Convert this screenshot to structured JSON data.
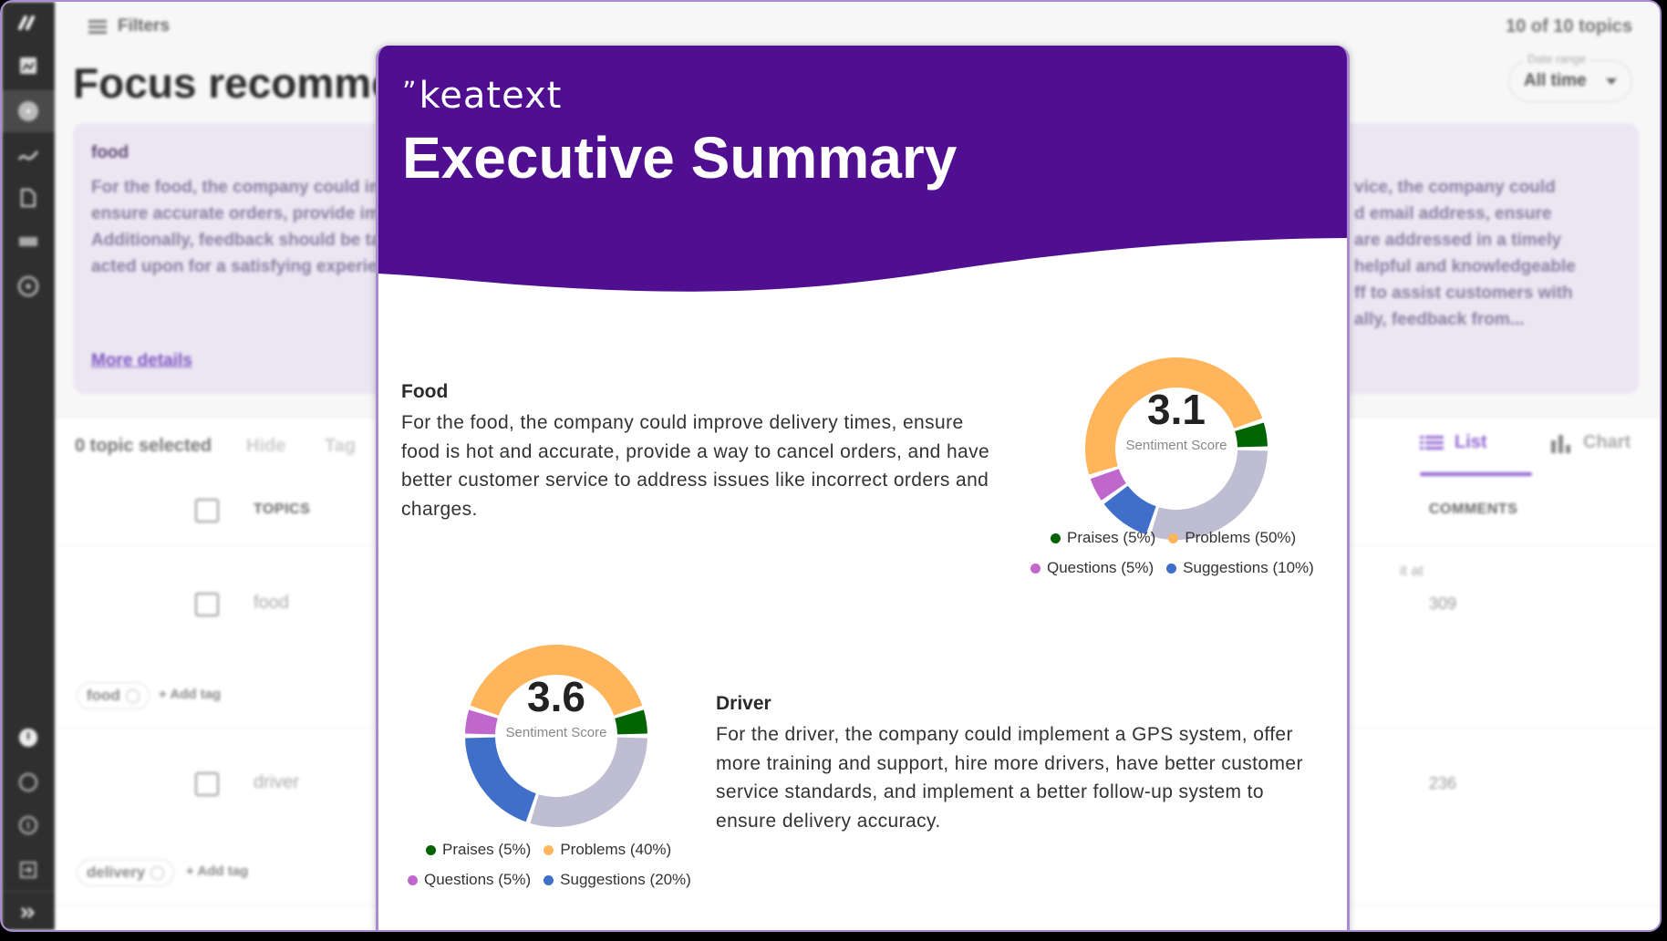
{
  "sidebar": {
    "items": [
      {
        "name": "logo",
        "icon": "keatext-logo-icon"
      },
      {
        "name": "dashboard",
        "icon": "chart-image-icon"
      },
      {
        "name": "focus",
        "icon": "focus-circle-icon",
        "active": true
      },
      {
        "name": "trends",
        "icon": "trend-line-icon"
      },
      {
        "name": "reports",
        "icon": "document-icon"
      },
      {
        "name": "comments",
        "icon": "list-icon"
      },
      {
        "name": "targets",
        "icon": "target-icon"
      }
    ],
    "bottom_items": [
      {
        "name": "alerts",
        "icon": "info-circle-icon"
      },
      {
        "name": "help",
        "icon": "help-circle-icon"
      },
      {
        "name": "feedback",
        "icon": "feedback-circle-icon"
      },
      {
        "name": "logout",
        "icon": "logout-icon"
      },
      {
        "name": "expand",
        "icon": "double-chevron-right-icon"
      }
    ]
  },
  "header": {
    "filters_label": "Filters",
    "topics_count": "10 of 10 topics",
    "date_range_label": "Date range",
    "date_range_value": "All time",
    "page_title": "Focus recommendations"
  },
  "recommendation_card": {
    "title": "food",
    "text": "For the food, the company could improve delivery times, ensure accurate orders, provide improved customer service. Additionally, feedback should be taken into consideration and acted upon for a satisfying experience.",
    "right_text": "vice, the company could\nd email address, ensure\nare addressed in a timely\nhelpful and knowledgeable\nff to assist customers with\nally, feedback from...",
    "more_link": "More details"
  },
  "toolbar": {
    "selected": "0 topic selected",
    "hide": "Hide",
    "tag": "Tag",
    "tab_list": "List",
    "tab_chart": "Chart"
  },
  "table": {
    "headers": {
      "topics": "TOPICS",
      "comments": "COMMENTS"
    },
    "rows": [
      {
        "topic": "food",
        "comments": "309",
        "tags": [
          "food"
        ],
        "add_tag": "Add tag",
        "fragment": "it at"
      },
      {
        "topic": "driver",
        "comments": "236",
        "tags": [
          "delivery"
        ],
        "add_tag": "Add tag"
      }
    ]
  },
  "modal": {
    "brand": "keatext",
    "title": "Executive Summary",
    "header_color": "#500e91",
    "sections": [
      {
        "heading": "Food",
        "text": "For the food, the company could improve delivery times, ensure food is hot and accurate, provide a way to cancel orders, and have better customer service to address issues like incorrect orders and charges.",
        "score": "3.1",
        "score_label": "Sentiment Score",
        "legend": [
          {
            "label": "Praises (5%)"
          },
          {
            "label": "Problems (50%)"
          },
          {
            "label": "Questions (5%)"
          },
          {
            "label": "Suggestions (10%)"
          }
        ]
      },
      {
        "heading": "Driver",
        "text": "For the driver, the company could implement a GPS system, offer more training and support, hire more drivers, have better customer service standards, and implement a better follow-up system to ensure delivery accuracy.",
        "score": "3.6",
        "score_label": "Sentiment Score",
        "legend": [
          {
            "label": "Praises (5%)"
          },
          {
            "label": "Problems (40%)"
          },
          {
            "label": "Questions (5%)"
          },
          {
            "label": "Suggestions (20%)"
          }
        ]
      }
    ]
  },
  "colors": {
    "praises": "#006400",
    "problems": "#ffb55c",
    "questions": "#c067cc",
    "suggestions": "#3f6fc8",
    "neutral": "#bfbdd1",
    "accent": "#8f63cf"
  },
  "chart_data": [
    {
      "type": "pie",
      "title": "Food — Sentiment Score 3.1",
      "categories": [
        "Praises",
        "Problems",
        "Questions",
        "Suggestions",
        "Other"
      ],
      "values": [
        5,
        50,
        5,
        10,
        30
      ],
      "center_label": "3.1 Sentiment Score",
      "legend": [
        "Praises (5%)",
        "Problems (50%)",
        "Questions (5%)",
        "Suggestions (10%)"
      ],
      "legend_position": "bottom"
    },
    {
      "type": "pie",
      "title": "Driver — Sentiment Score 3.6",
      "categories": [
        "Praises",
        "Problems",
        "Questions",
        "Suggestions",
        "Other"
      ],
      "values": [
        5,
        40,
        5,
        20,
        30
      ],
      "center_label": "3.6 Sentiment Score",
      "legend": [
        "Praises (5%)",
        "Problems (40%)",
        "Questions (5%)",
        "Suggestions (20%)"
      ],
      "legend_position": "bottom"
    }
  ]
}
